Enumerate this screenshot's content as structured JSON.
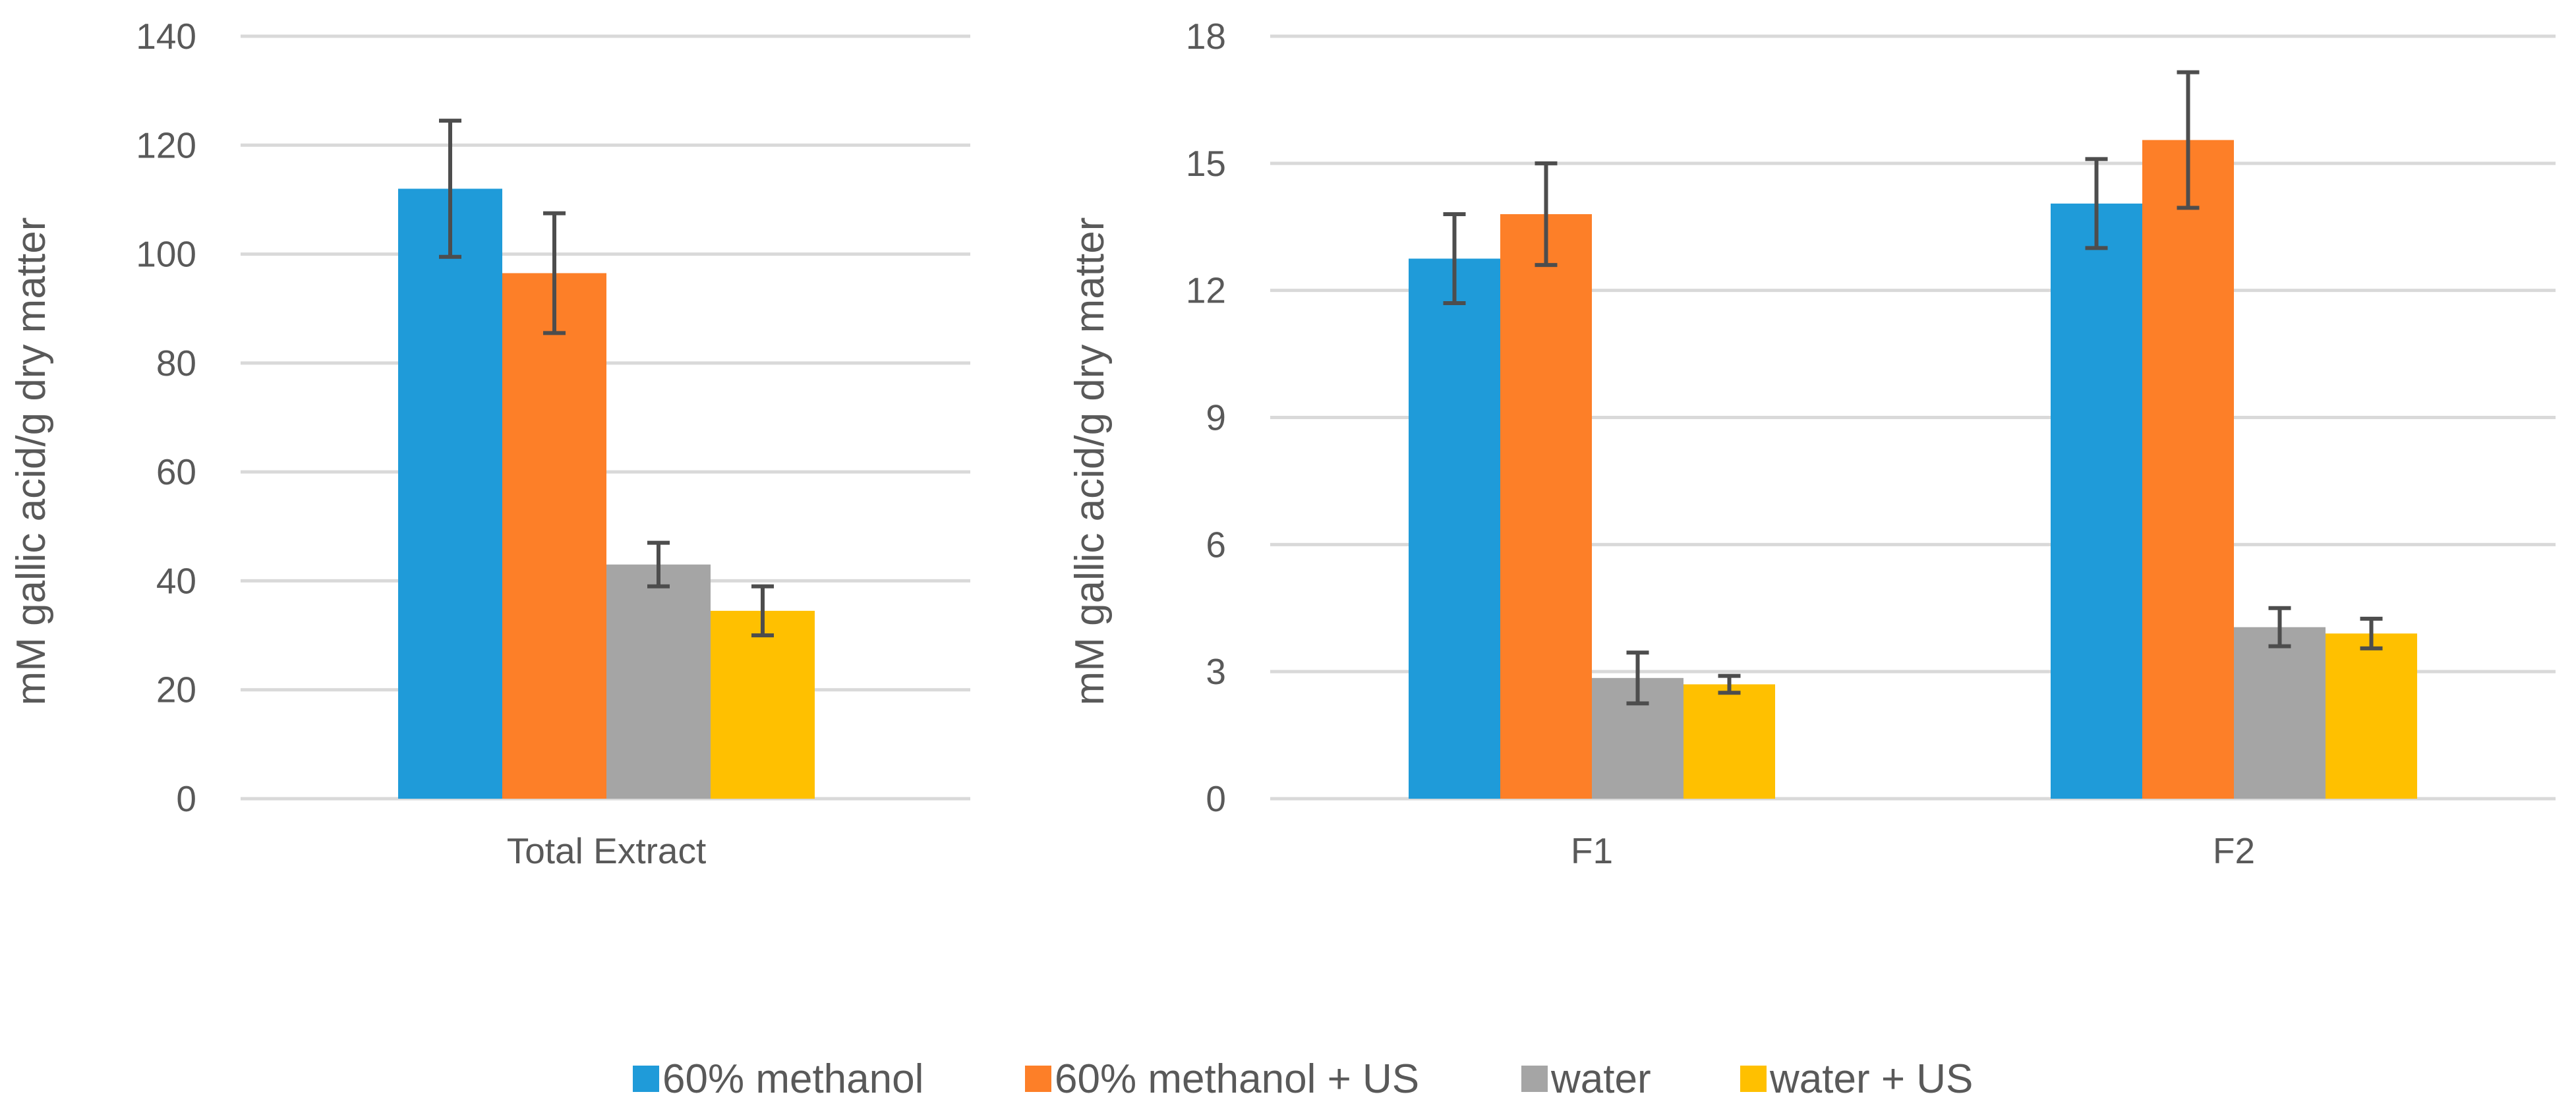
{
  "chart_data": [
    {
      "type": "bar",
      "title": "",
      "xlabel": "",
      "ylabel": "mM gallic acid/g dry matter",
      "ylim": [
        0,
        140
      ],
      "yticks": [
        0,
        20,
        40,
        60,
        80,
        100,
        120,
        140
      ],
      "grid": true,
      "categories": [
        "Total Extract"
      ],
      "series": [
        {
          "name": "60% methanol",
          "values": [
            112
          ],
          "errors": [
            12.5
          ]
        },
        {
          "name": "60% methanol + US",
          "values": [
            96.5
          ],
          "errors": [
            11
          ]
        },
        {
          "name": "water",
          "values": [
            43
          ],
          "errors": [
            4
          ]
        },
        {
          "name": "water + US",
          "values": [
            34.5
          ],
          "errors": [
            4.5
          ]
        }
      ]
    },
    {
      "type": "bar",
      "title": "",
      "xlabel": "",
      "ylabel": "mM gallic acid/g dry matter",
      "ylim": [
        0,
        18
      ],
      "yticks": [
        0,
        3,
        6,
        9,
        12,
        15,
        18
      ],
      "grid": true,
      "categories": [
        "F1",
        "F2"
      ],
      "series": [
        {
          "name": "60% methanol",
          "values": [
            12.75,
            14.05
          ],
          "errors": [
            1.05,
            1.05
          ]
        },
        {
          "name": "60% methanol + US",
          "values": [
            13.8,
            15.55
          ],
          "errors": [
            1.2,
            1.6
          ]
        },
        {
          "name": "water",
          "values": [
            2.85,
            4.05
          ],
          "errors": [
            0.6,
            0.45
          ]
        },
        {
          "name": "water + US",
          "values": [
            2.7,
            3.9
          ],
          "errors": [
            0.2,
            0.35
          ]
        }
      ]
    }
  ],
  "legend": {
    "position": "bottom",
    "items": [
      {
        "label": "60% methanol",
        "color": "#1f9bd9"
      },
      {
        "label": "60% methanol + US",
        "color": "#fd7f28"
      },
      {
        "label": "water",
        "color": "#a5a5a5"
      },
      {
        "label": "water + US",
        "color": "#ffc000"
      }
    ]
  }
}
